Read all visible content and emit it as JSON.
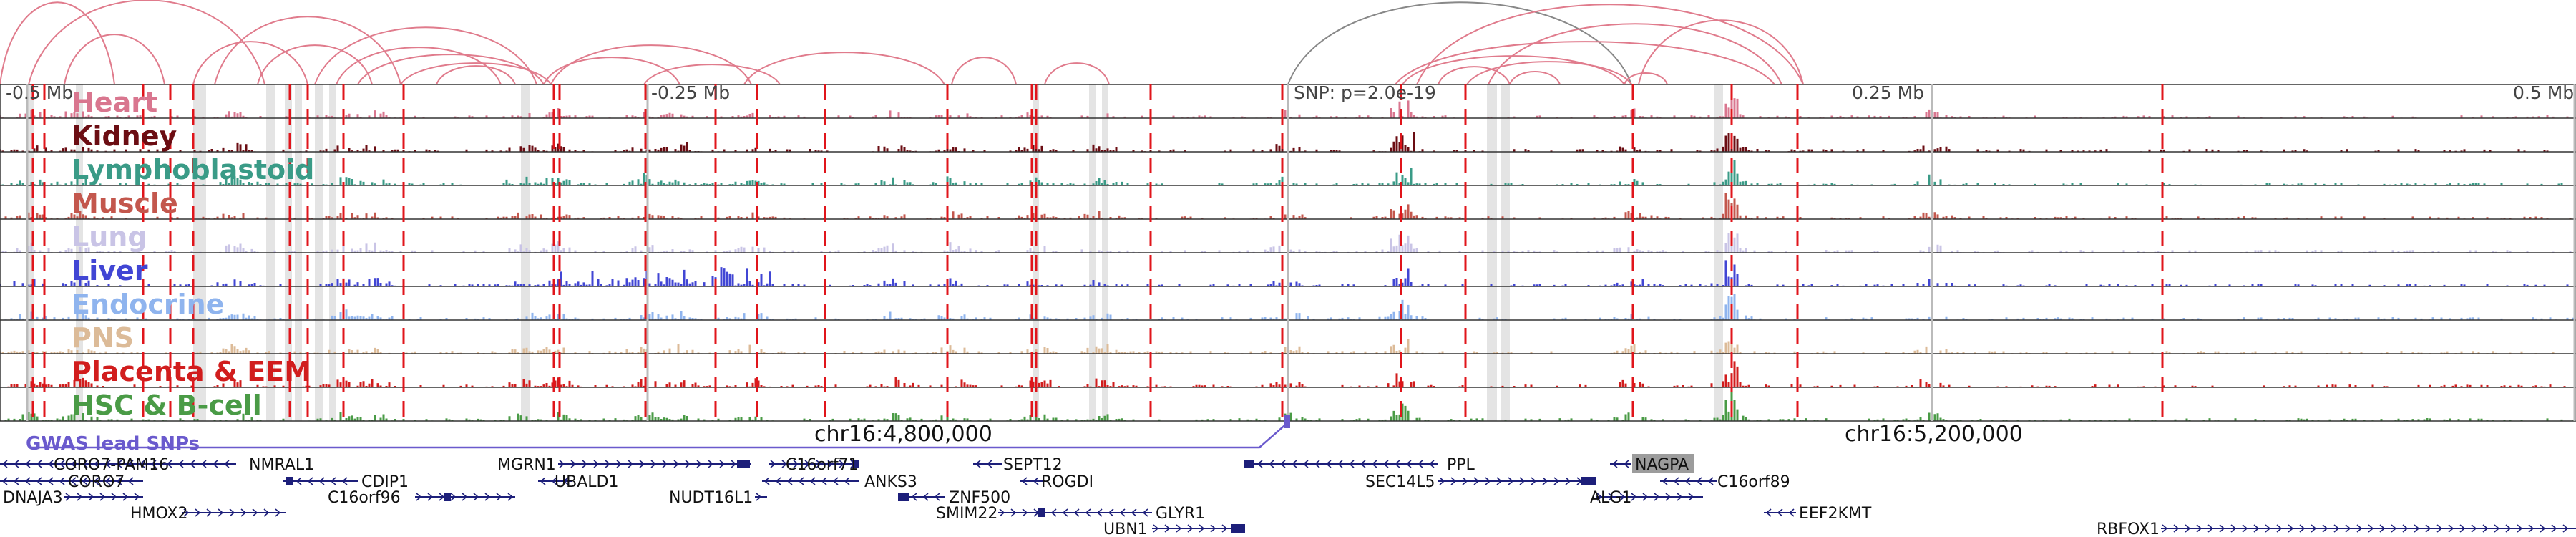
{
  "axis": {
    "ticks": [
      {
        "label": "-0.5 Mb",
        "kind": "offset"
      },
      {
        "label": "-0.25 Mb",
        "kind": "offset"
      },
      {
        "label": "SNP: p=2.0e-19",
        "kind": "snp"
      },
      {
        "label": "0.25 Mb",
        "kind": "offset"
      },
      {
        "label": "0.5 Mb",
        "kind": "offset"
      }
    ],
    "positions": [
      {
        "label": "chr16:4,800,000"
      },
      {
        "label": "chr16:5,200,000"
      }
    ]
  },
  "tracks": [
    {
      "name": "Heart",
      "color": "#d9768f"
    },
    {
      "name": "Kidney",
      "color": "#6b0d13"
    },
    {
      "name": "Lymphoblastoid",
      "color": "#3a9b87"
    },
    {
      "name": "Muscle",
      "color": "#c3574d"
    },
    {
      "name": "Lung",
      "color": "#c9c4e6"
    },
    {
      "name": "Liver",
      "color": "#4146d4"
    },
    {
      "name": "Endocrine",
      "color": "#8fb4ee"
    },
    {
      "name": "PNS",
      "color": "#dcbb98"
    },
    {
      "name": "Placenta & EEM",
      "color": "#d11d1d"
    },
    {
      "name": "HSC & B-cell",
      "color": "#4a9b46"
    }
  ],
  "gwas": {
    "label": "GWAS lead SNPs",
    "color": "#6a5acd"
  },
  "genes": [
    {
      "name": "CORO7-PAM16",
      "dir": "-"
    },
    {
      "name": "NMRAL1",
      "dir": "-"
    },
    {
      "name": "CORO7",
      "dir": "-"
    },
    {
      "name": "CDIP1",
      "dir": "-"
    },
    {
      "name": "DNAJA3",
      "dir": "+"
    },
    {
      "name": "C16orf96",
      "dir": "+"
    },
    {
      "name": "HMOX2",
      "dir": "+"
    },
    {
      "name": "MGRN1",
      "dir": "+"
    },
    {
      "name": "UBALD1",
      "dir": "-"
    },
    {
      "name": "NUDT16L1",
      "dir": "+"
    },
    {
      "name": "C16orf71",
      "dir": "+"
    },
    {
      "name": "ANKS3",
      "dir": "-"
    },
    {
      "name": "ZNF500",
      "dir": "-"
    },
    {
      "name": "SEPT12",
      "dir": "-"
    },
    {
      "name": "ROGDI",
      "dir": "-"
    },
    {
      "name": "SMIM22",
      "dir": "+"
    },
    {
      "name": "GLYR1",
      "dir": "-"
    },
    {
      "name": "UBN1",
      "dir": "+"
    },
    {
      "name": "PPL",
      "dir": "-"
    },
    {
      "name": "SEC14L5",
      "dir": "+"
    },
    {
      "name": "NAGPA",
      "dir": "-"
    },
    {
      "name": "ALG1",
      "dir": "+"
    },
    {
      "name": "C16orf89",
      "dir": "-"
    },
    {
      "name": "EEF2KMT",
      "dir": "-"
    },
    {
      "name": "RBFOX1",
      "dir": "+"
    }
  ],
  "colors": {
    "arc": "#e07b8c",
    "arc_lead": "#888888",
    "snp_line": "#e0151b",
    "gene": "#1d1f7a",
    "highlight_bg": "#9c9c9c",
    "frame": "#333333",
    "grid": "#bbbbbb"
  }
}
